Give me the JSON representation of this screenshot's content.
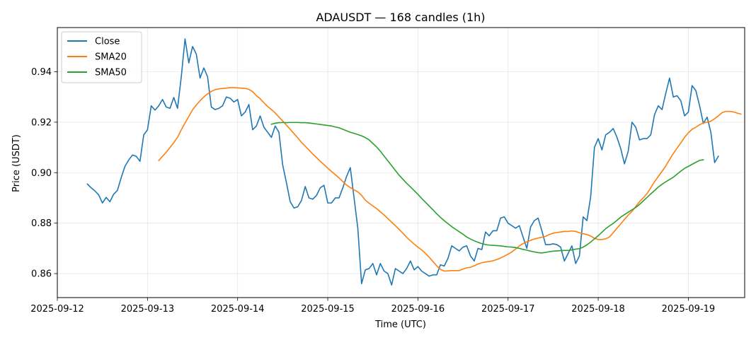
{
  "chart_data": {
    "type": "line",
    "title": "ADAUSDT — 168 candles (1h)",
    "xlabel": "Time (UTC)",
    "ylabel": "Price (USDT)",
    "x_start": "2025-09-12T08:00Z",
    "x_step_hours": 1,
    "xlim": [
      "2025-09-12T00:00Z",
      "2025-09-19T15:00Z"
    ],
    "ylim": [
      0.8505,
      0.9575
    ],
    "x_ticks": [
      "2025-09-12",
      "2025-09-13",
      "2025-09-14",
      "2025-09-15",
      "2025-09-16",
      "2025-09-17",
      "2025-09-18",
      "2025-09-19"
    ],
    "y_ticks": [
      0.86,
      0.88,
      0.9,
      0.92,
      0.94
    ],
    "y_tick_labels": [
      "0.86",
      "0.88",
      "0.90",
      "0.92",
      "0.94"
    ],
    "grid": true,
    "legend_position": "top-left",
    "series": [
      {
        "name": "Close",
        "color": "#1f77b4",
        "start_index": 0,
        "values": [
          0.8955,
          0.894,
          0.8928,
          0.8912,
          0.888,
          0.8902,
          0.8885,
          0.8915,
          0.893,
          0.898,
          0.9025,
          0.905,
          0.907,
          0.9065,
          0.9045,
          0.915,
          0.917,
          0.9265,
          0.9248,
          0.9265,
          0.929,
          0.926,
          0.9255,
          0.9298,
          0.9255,
          0.938,
          0.953,
          0.9435,
          0.95,
          0.947,
          0.9375,
          0.9415,
          0.938,
          0.926,
          0.925,
          0.9255,
          0.9265,
          0.93,
          0.9295,
          0.928,
          0.929,
          0.9225,
          0.924,
          0.927,
          0.917,
          0.9185,
          0.9225,
          0.918,
          0.916,
          0.914,
          0.9185,
          0.916,
          0.903,
          0.896,
          0.8885,
          0.886,
          0.8865,
          0.889,
          0.8945,
          0.89,
          0.8895,
          0.891,
          0.894,
          0.895,
          0.888,
          0.888,
          0.89,
          0.89,
          0.894,
          0.8985,
          0.902,
          0.89,
          0.878,
          0.856,
          0.8615,
          0.862,
          0.864,
          0.8595,
          0.864,
          0.861,
          0.86,
          0.8555,
          0.862,
          0.861,
          0.86,
          0.862,
          0.865,
          0.8615,
          0.8628,
          0.861,
          0.86,
          0.859,
          0.8595,
          0.8595,
          0.8635,
          0.863,
          0.866,
          0.871,
          0.87,
          0.869,
          0.8705,
          0.871,
          0.867,
          0.865,
          0.87,
          0.8695,
          0.8765,
          0.875,
          0.877,
          0.877,
          0.882,
          0.8825,
          0.88,
          0.879,
          0.878,
          0.879,
          0.8745,
          0.87,
          0.8785,
          0.881,
          0.882,
          0.877,
          0.8715,
          0.8715,
          0.8718,
          0.8715,
          0.8705,
          0.865,
          0.868,
          0.871,
          0.864,
          0.867,
          0.8825,
          0.881,
          0.8905,
          0.91,
          0.9135,
          0.909,
          0.915,
          0.916,
          0.9175,
          0.914,
          0.9095,
          0.9035,
          0.9085,
          0.92,
          0.918,
          0.913,
          0.9135,
          0.9135,
          0.915,
          0.923,
          0.9265,
          0.925,
          0.9315,
          0.9375,
          0.93,
          0.9305,
          0.9285,
          0.9225,
          0.924,
          0.9345,
          0.9325,
          0.9265,
          0.9195,
          0.922,
          0.916,
          0.904,
          0.9065
        ]
      },
      {
        "name": "SMA20",
        "color": "#ff7f0e",
        "start_index": 19,
        "values": [
          0.9048,
          0.9065,
          0.9081,
          0.91,
          0.9119,
          0.914,
          0.917,
          0.9197,
          0.9223,
          0.9249,
          0.9268,
          0.9285,
          0.93,
          0.9312,
          0.9322,
          0.9329,
          0.9332,
          0.9334,
          0.9335,
          0.9337,
          0.9337,
          0.9336,
          0.9335,
          0.9334,
          0.933,
          0.9321,
          0.9305,
          0.9293,
          0.9277,
          0.9262,
          0.925,
          0.9237,
          0.922,
          0.9205,
          0.9188,
          0.9172,
          0.9155,
          0.9138,
          0.912,
          0.9105,
          0.909,
          0.9074,
          0.906,
          0.9045,
          0.9032,
          0.9018,
          0.9005,
          0.8992,
          0.8979,
          0.8965,
          0.8951,
          0.8941,
          0.8932,
          0.8924,
          0.891,
          0.8891,
          0.8879,
          0.8868,
          0.8858,
          0.8845,
          0.8832,
          0.8818,
          0.8804,
          0.879,
          0.8775,
          0.876,
          0.8744,
          0.873,
          0.8717,
          0.8705,
          0.8694,
          0.868,
          0.8665,
          0.8648,
          0.8631,
          0.8617,
          0.861,
          0.8611,
          0.8612,
          0.8612,
          0.8612,
          0.8618,
          0.8623,
          0.8625,
          0.8631,
          0.8638,
          0.8643,
          0.8646,
          0.8648,
          0.8651,
          0.8656,
          0.8662,
          0.8669,
          0.8677,
          0.8686,
          0.8697,
          0.871,
          0.8719,
          0.8726,
          0.8732,
          0.8737,
          0.8741,
          0.8744,
          0.8748,
          0.8755,
          0.876,
          0.8763,
          0.8765,
          0.8767,
          0.8767,
          0.8769,
          0.8767,
          0.8762,
          0.8758,
          0.8755,
          0.8749,
          0.874,
          0.8735,
          0.8735,
          0.8738,
          0.8745,
          0.8762,
          0.878,
          0.8797,
          0.8815,
          0.8832,
          0.8847,
          0.8866,
          0.8885,
          0.89,
          0.8917,
          0.894,
          0.8964,
          0.8985,
          0.9005,
          0.9027,
          0.9052,
          0.9076,
          0.9097,
          0.9118,
          0.914,
          0.9158,
          0.9172,
          0.918,
          0.919,
          0.9197,
          0.92,
          0.9204,
          0.9214,
          0.9225,
          0.9238,
          0.9243,
          0.9243,
          0.9241,
          0.9236,
          0.9232
        ]
      },
      {
        "name": "SMA50",
        "color": "#2ca02c",
        "start_index": 49,
        "values": [
          0.9192,
          0.9196,
          0.9198,
          0.9199,
          0.9198,
          0.9199,
          0.9199,
          0.9199,
          0.9198,
          0.9198,
          0.9197,
          0.9195,
          0.9193,
          0.9191,
          0.9189,
          0.9187,
          0.9185,
          0.9181,
          0.9178,
          0.9172,
          0.9166,
          0.916,
          0.9156,
          0.9151,
          0.9146,
          0.9139,
          0.913,
          0.9116,
          0.9102,
          0.9085,
          0.9066,
          0.9047,
          0.9028,
          0.9009,
          0.899,
          0.8974,
          0.8958,
          0.8944,
          0.8929,
          0.8914,
          0.8898,
          0.8883,
          0.8868,
          0.8853,
          0.8837,
          0.8823,
          0.881,
          0.8798,
          0.8786,
          0.8776,
          0.8766,
          0.8756,
          0.8745,
          0.8737,
          0.873,
          0.8724,
          0.8719,
          0.8715,
          0.8713,
          0.8712,
          0.8711,
          0.871,
          0.8708,
          0.8706,
          0.8705,
          0.8703,
          0.87,
          0.8696,
          0.8693,
          0.8689,
          0.8686,
          0.8683,
          0.8682,
          0.8684,
          0.8687,
          0.8689,
          0.869,
          0.8691,
          0.8692,
          0.8692,
          0.8694,
          0.8697,
          0.8699,
          0.8705,
          0.8714,
          0.8725,
          0.8738,
          0.875,
          0.8764,
          0.8778,
          0.8789,
          0.8799,
          0.8811,
          0.8824,
          0.8834,
          0.8843,
          0.8853,
          0.8862,
          0.8874,
          0.8888,
          0.8902,
          0.8916,
          0.8929,
          0.8943,
          0.8954,
          0.8964,
          0.8973,
          0.8982,
          0.8994,
          0.9006,
          0.9017,
          0.9025,
          0.9033,
          0.9041,
          0.9049,
          0.9051
        ]
      }
    ]
  }
}
